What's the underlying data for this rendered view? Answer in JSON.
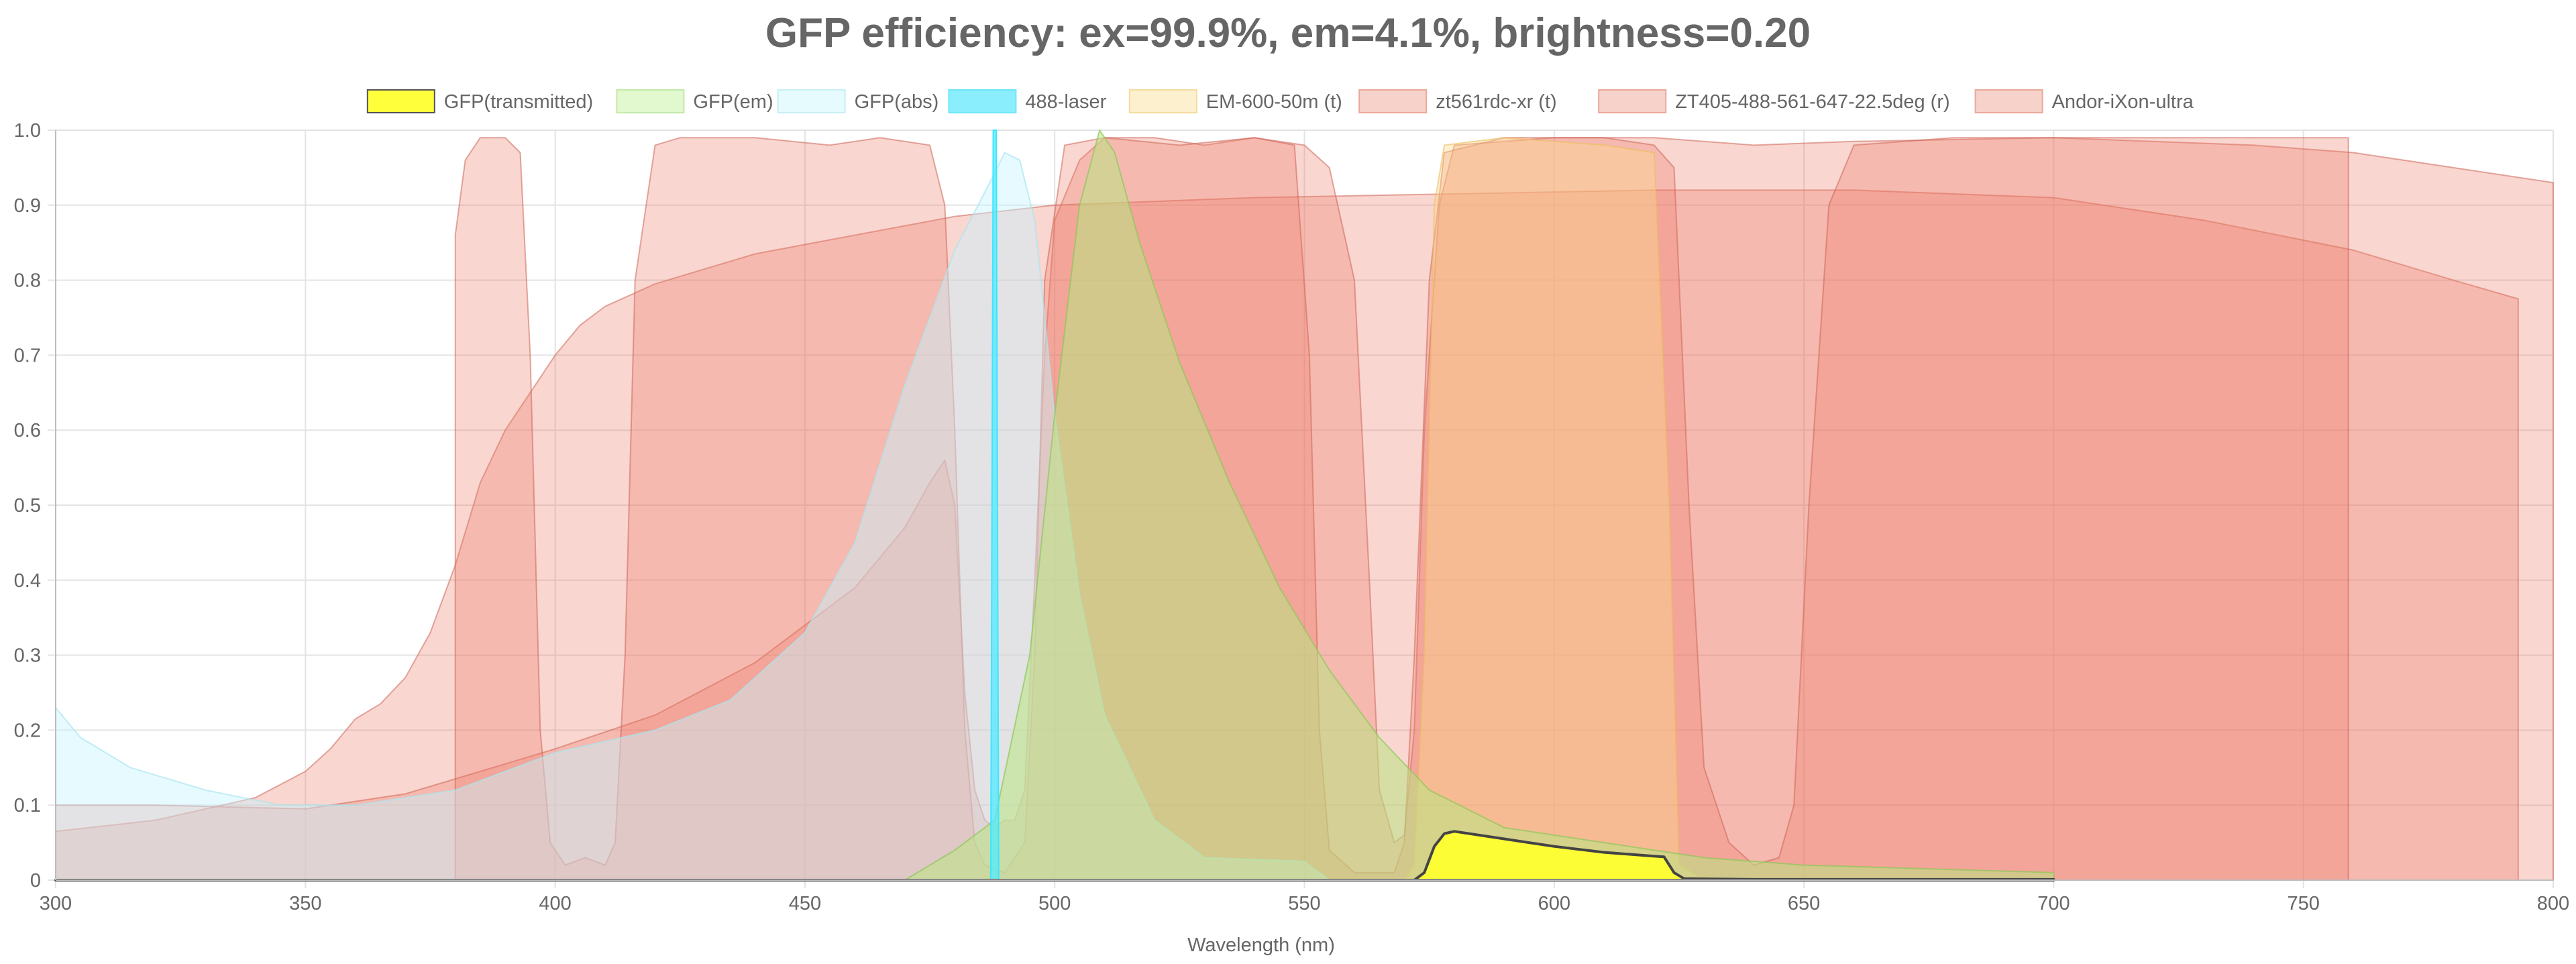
{
  "chart_data": {
    "type": "area",
    "title": "GFP efficiency: ex=99.9%, em=4.1%, brightness=0.20",
    "xlabel": "Wavelength (nm)",
    "ylabel": "",
    "xlim": [
      300,
      800
    ],
    "ylim": [
      0,
      1.0
    ],
    "x_ticks": [
      "300",
      "350",
      "400",
      "450",
      "500",
      "550",
      "600",
      "650",
      "700",
      "750",
      "800"
    ],
    "y_ticks": [
      "0",
      "0.1",
      "0.2",
      "0.3",
      "0.4",
      "0.5",
      "0.6",
      "0.7",
      "0.8",
      "0.9",
      "1.0"
    ],
    "grid": true,
    "legend_position": "top",
    "series": [
      {
        "name": "Andor-iXon-ultra",
        "fill": "rgba(236,120,100,0.30)",
        "stroke": "rgba(205,100,85,0.55)",
        "points": [
          [
            300,
            0.065
          ],
          [
            320,
            0.08
          ],
          [
            340,
            0.11
          ],
          [
            350,
            0.145
          ],
          [
            355,
            0.175
          ],
          [
            360,
            0.215
          ],
          [
            365,
            0.235
          ],
          [
            370,
            0.27
          ],
          [
            375,
            0.33
          ],
          [
            380,
            0.42
          ],
          [
            385,
            0.53
          ],
          [
            390,
            0.6
          ],
          [
            395,
            0.65
          ],
          [
            400,
            0.7
          ],
          [
            405,
            0.74
          ],
          [
            410,
            0.765
          ],
          [
            420,
            0.795
          ],
          [
            440,
            0.835
          ],
          [
            460,
            0.86
          ],
          [
            480,
            0.885
          ],
          [
            500,
            0.9
          ],
          [
            540,
            0.91
          ],
          [
            580,
            0.915
          ],
          [
            620,
            0.92
          ],
          [
            660,
            0.92
          ],
          [
            700,
            0.91
          ],
          [
            730,
            0.88
          ],
          [
            760,
            0.84
          ],
          [
            780,
            0.8
          ],
          [
            793,
            0.775
          ],
          [
            793,
            0
          ]
        ]
      },
      {
        "name": "ZT405-488-561-647-22.5deg (r)",
        "fill": "rgba(236,120,100,0.30)",
        "stroke": "rgba(205,100,85,0.55)",
        "points": [
          [
            300,
            0.1
          ],
          [
            320,
            0.1
          ],
          [
            350,
            0.095
          ],
          [
            370,
            0.115
          ],
          [
            400,
            0.175
          ],
          [
            420,
            0.22
          ],
          [
            440,
            0.29
          ],
          [
            460,
            0.39
          ],
          [
            470,
            0.47
          ],
          [
            475,
            0.53
          ],
          [
            478,
            0.56
          ],
          [
            480,
            0.5
          ],
          [
            482,
            0.25
          ],
          [
            484,
            0.12
          ],
          [
            486,
            0.08
          ],
          [
            488,
            0.07
          ],
          [
            490,
            0.08
          ],
          [
            492,
            0.08
          ],
          [
            494,
            0.12
          ],
          [
            496,
            0.4
          ],
          [
            498,
            0.7
          ],
          [
            500,
            0.88
          ],
          [
            505,
            0.96
          ],
          [
            510,
            0.99
          ],
          [
            520,
            0.99
          ],
          [
            530,
            0.98
          ],
          [
            540,
            0.99
          ],
          [
            550,
            0.98
          ],
          [
            555,
            0.95
          ],
          [
            560,
            0.8
          ],
          [
            563,
            0.4
          ],
          [
            565,
            0.12
          ],
          [
            568,
            0.05
          ],
          [
            570,
            0.06
          ],
          [
            572,
            0.2
          ],
          [
            574,
            0.6
          ],
          [
            577,
            0.9
          ],
          [
            580,
            0.98
          ],
          [
            600,
            0.99
          ],
          [
            620,
            0.99
          ],
          [
            640,
            0.98
          ],
          [
            660,
            0.985
          ],
          [
            700,
            0.99
          ],
          [
            740,
            0.98
          ],
          [
            760,
            0.97
          ],
          [
            780,
            0.95
          ],
          [
            800,
            0.93
          ],
          [
            800,
            0
          ]
        ]
      },
      {
        "name": "zt561rdc-xr (t)",
        "fill": "rgba(236,120,100,0.30)",
        "stroke": "rgba(205,100,85,0.55)",
        "points": [
          [
            380,
            0
          ],
          [
            380,
            0.86
          ],
          [
            382,
            0.96
          ],
          [
            385,
            0.99
          ],
          [
            390,
            0.99
          ],
          [
            393,
            0.97
          ],
          [
            395,
            0.7
          ],
          [
            397,
            0.2
          ],
          [
            399,
            0.05
          ],
          [
            402,
            0.02
          ],
          [
            406,
            0.03
          ],
          [
            410,
            0.02
          ],
          [
            412,
            0.05
          ],
          [
            414,
            0.3
          ],
          [
            416,
            0.8
          ],
          [
            420,
            0.98
          ],
          [
            425,
            0.99
          ],
          [
            440,
            0.99
          ],
          [
            455,
            0.98
          ],
          [
            465,
            0.99
          ],
          [
            475,
            0.98
          ],
          [
            478,
            0.9
          ],
          [
            480,
            0.6
          ],
          [
            482,
            0.2
          ],
          [
            484,
            0.05
          ],
          [
            486,
            0.02
          ],
          [
            490,
            0.01
          ],
          [
            494,
            0.05
          ],
          [
            496,
            0.3
          ],
          [
            498,
            0.8
          ],
          [
            502,
            0.98
          ],
          [
            510,
            0.99
          ],
          [
            525,
            0.98
          ],
          [
            540,
            0.99
          ],
          [
            548,
            0.98
          ],
          [
            551,
            0.7
          ],
          [
            553,
            0.2
          ],
          [
            555,
            0.04
          ],
          [
            560,
            0.01
          ],
          [
            565,
            0.01
          ],
          [
            568,
            0.01
          ],
          [
            570,
            0.05
          ],
          [
            572,
            0.3
          ],
          [
            575,
            0.8
          ],
          [
            578,
            0.97
          ],
          [
            590,
            0.99
          ],
          [
            610,
            0.99
          ],
          [
            620,
            0.98
          ],
          [
            624,
            0.95
          ],
          [
            627,
            0.5
          ],
          [
            630,
            0.15
          ],
          [
            635,
            0.05
          ],
          [
            640,
            0.02
          ],
          [
            645,
            0.03
          ],
          [
            648,
            0.1
          ],
          [
            651,
            0.5
          ],
          [
            655,
            0.9
          ],
          [
            660,
            0.98
          ],
          [
            680,
            0.99
          ],
          [
            700,
            0.99
          ],
          [
            720,
            0.99
          ],
          [
            740,
            0.99
          ],
          [
            759,
            0.99
          ],
          [
            759,
            0
          ]
        ]
      },
      {
        "name": "EM-600-50m (t)",
        "fill": "rgba(252,220,140,0.40)",
        "stroke": "rgba(235,190,90,0.6)",
        "points": [
          [
            570,
            0
          ],
          [
            572,
            0.02
          ],
          [
            574,
            0.3
          ],
          [
            576,
            0.9
          ],
          [
            578,
            0.98
          ],
          [
            590,
            0.99
          ],
          [
            610,
            0.98
          ],
          [
            620,
            0.97
          ],
          [
            623,
            0.5
          ],
          [
            625,
            0.02
          ],
          [
            630,
            0
          ]
        ]
      },
      {
        "name": "GFP(abs)",
        "fill": "rgba(200,245,255,0.45)",
        "stroke": "rgba(170,230,240,0.7)",
        "points": [
          [
            300,
            0.23
          ],
          [
            305,
            0.19
          ],
          [
            315,
            0.15
          ],
          [
            330,
            0.12
          ],
          [
            345,
            0.1
          ],
          [
            360,
            0.1
          ],
          [
            380,
            0.12
          ],
          [
            400,
            0.17
          ],
          [
            420,
            0.2
          ],
          [
            435,
            0.24
          ],
          [
            450,
            0.33
          ],
          [
            460,
            0.45
          ],
          [
            470,
            0.66
          ],
          [
            480,
            0.84
          ],
          [
            487,
            0.93
          ],
          [
            490,
            0.97
          ],
          [
            493,
            0.96
          ],
          [
            496,
            0.88
          ],
          [
            500,
            0.62
          ],
          [
            505,
            0.38
          ],
          [
            510,
            0.22
          ],
          [
            520,
            0.08
          ],
          [
            530,
            0.03
          ],
          [
            550,
            0.025
          ],
          [
            555,
            0
          ]
        ]
      },
      {
        "name": "GFP(em)",
        "fill": "rgba(185,230,130,0.55)",
        "stroke": "rgba(140,200,90,0.7)",
        "points": [
          [
            470,
            0
          ],
          [
            480,
            0.04
          ],
          [
            488,
            0.08
          ],
          [
            495,
            0.3
          ],
          [
            500,
            0.62
          ],
          [
            505,
            0.9
          ],
          [
            509,
            1.0
          ],
          [
            512,
            0.97
          ],
          [
            517,
            0.85
          ],
          [
            525,
            0.69
          ],
          [
            535,
            0.53
          ],
          [
            545,
            0.39
          ],
          [
            555,
            0.28
          ],
          [
            565,
            0.19
          ],
          [
            575,
            0.12
          ],
          [
            590,
            0.07
          ],
          [
            610,
            0.05
          ],
          [
            630,
            0.03
          ],
          [
            650,
            0.02
          ],
          [
            700,
            0.01
          ],
          [
            700,
            0
          ]
        ]
      },
      {
        "name": "488-laser",
        "fill": "rgba(80,235,255,0.75)",
        "stroke": "rgba(60,230,255,1)",
        "points": [
          [
            487.2,
            0
          ],
          [
            487.7,
            1.0
          ],
          [
            488.3,
            1.0
          ],
          [
            488.8,
            0
          ]
        ]
      },
      {
        "name": "GFP(transmitted)",
        "fill": "rgba(255,255,50,0.95)",
        "stroke": "#444444",
        "points": [
          [
            300,
            0
          ],
          [
            572,
            0
          ],
          [
            574,
            0.01
          ],
          [
            576,
            0.045
          ],
          [
            578,
            0.062
          ],
          [
            580,
            0.065
          ],
          [
            590,
            0.055
          ],
          [
            600,
            0.045
          ],
          [
            610,
            0.037
          ],
          [
            620,
            0.032
          ],
          [
            622,
            0.031
          ],
          [
            624,
            0.01
          ],
          [
            626,
            0.002
          ],
          [
            640,
            0.001
          ],
          [
            700,
            0.001
          ],
          [
            700,
            0
          ]
        ]
      }
    ],
    "legend": [
      {
        "label": "GFP(transmitted)",
        "fill": "#ffff3b",
        "stroke": "#555555"
      },
      {
        "label": "GFP(em)",
        "fill": "#e2f8cf",
        "stroke": "#c4eaa8"
      },
      {
        "label": "GFP(abs)",
        "fill": "#e6fbfd",
        "stroke": "#c7eff4"
      },
      {
        "label": "488-laser",
        "fill": "#8aeefc",
        "stroke": "#6fe6fa"
      },
      {
        "label": "EM-600-50m (t)",
        "fill": "#fdf0cf",
        "stroke": "#f4dc9e"
      },
      {
        "label": "zt561rdc-xr (t)",
        "fill": "#f6d2ca",
        "stroke": "#e9a89a"
      },
      {
        "label": "ZT405-488-561-647-22.5deg (r)",
        "fill": "#f6d2ca",
        "stroke": "#e9a89a"
      },
      {
        "label": "Andor-iXon-ultra",
        "fill": "#f6d2ca",
        "stroke": "#e9a89a"
      }
    ]
  }
}
